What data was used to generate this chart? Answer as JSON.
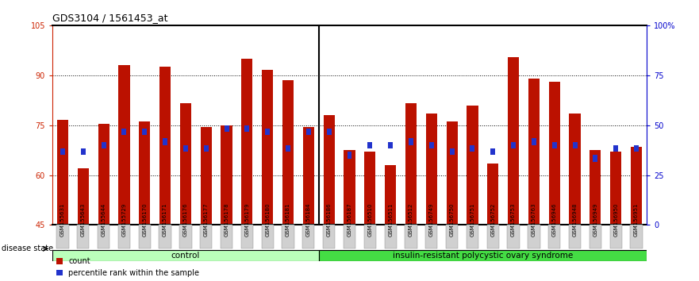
{
  "title": "GDS3104 / 1561453_at",
  "samples": [
    "GSM155631",
    "GSM155643",
    "GSM155644",
    "GSM155729",
    "GSM156170",
    "GSM156171",
    "GSM156176",
    "GSM156177",
    "GSM156178",
    "GSM156179",
    "GSM156180",
    "GSM156181",
    "GSM156184",
    "GSM156186",
    "GSM156187",
    "GSM156510",
    "GSM156511",
    "GSM156512",
    "GSM156749",
    "GSM156750",
    "GSM156751",
    "GSM156752",
    "GSM156753",
    "GSM156763",
    "GSM156946",
    "GSM156948",
    "GSM156949",
    "GSM156950",
    "GSM156951"
  ],
  "count_values": [
    76.5,
    62.0,
    75.5,
    93.0,
    76.0,
    92.5,
    81.5,
    74.5,
    75.0,
    95.0,
    91.5,
    88.5,
    74.5,
    78.0,
    67.5,
    67.0,
    63.0,
    81.5,
    78.5,
    76.0,
    81.0,
    63.5,
    95.5,
    89.0,
    88.0,
    78.5,
    67.5,
    67.0,
    68.5
  ],
  "percentile_values": [
    67.0,
    67.0,
    69.0,
    73.0,
    73.0,
    70.0,
    68.0,
    68.0,
    74.0,
    74.0,
    73.0,
    68.0,
    73.0,
    73.0,
    66.0,
    69.0,
    69.0,
    70.0,
    69.0,
    67.0,
    68.0,
    67.0,
    69.0,
    70.0,
    69.0,
    69.0,
    65.0,
    68.0,
    68.0
  ],
  "n_control": 13,
  "n_disease": 16,
  "group_labels": [
    "control",
    "insulin-resistant polycystic ovary syndrome"
  ],
  "ymin": 45,
  "ymax": 105,
  "yticks_left": [
    45,
    60,
    75,
    90,
    105
  ],
  "right_tick_positions": [
    45,
    60,
    75,
    90,
    105
  ],
  "right_tick_labels": [
    "0",
    "25",
    "50",
    "75",
    "100%"
  ],
  "grid_lines": [
    60,
    75,
    90
  ],
  "bar_color": "#BB1100",
  "percentile_color": "#2233CC",
  "control_bg": "#BBFFBB",
  "disease_bg": "#44DD44",
  "legend_count_label": "count",
  "legend_percentile_label": "percentile rank within the sample",
  "left_axis_color": "#CC2200",
  "right_axis_color": "#0000CC"
}
